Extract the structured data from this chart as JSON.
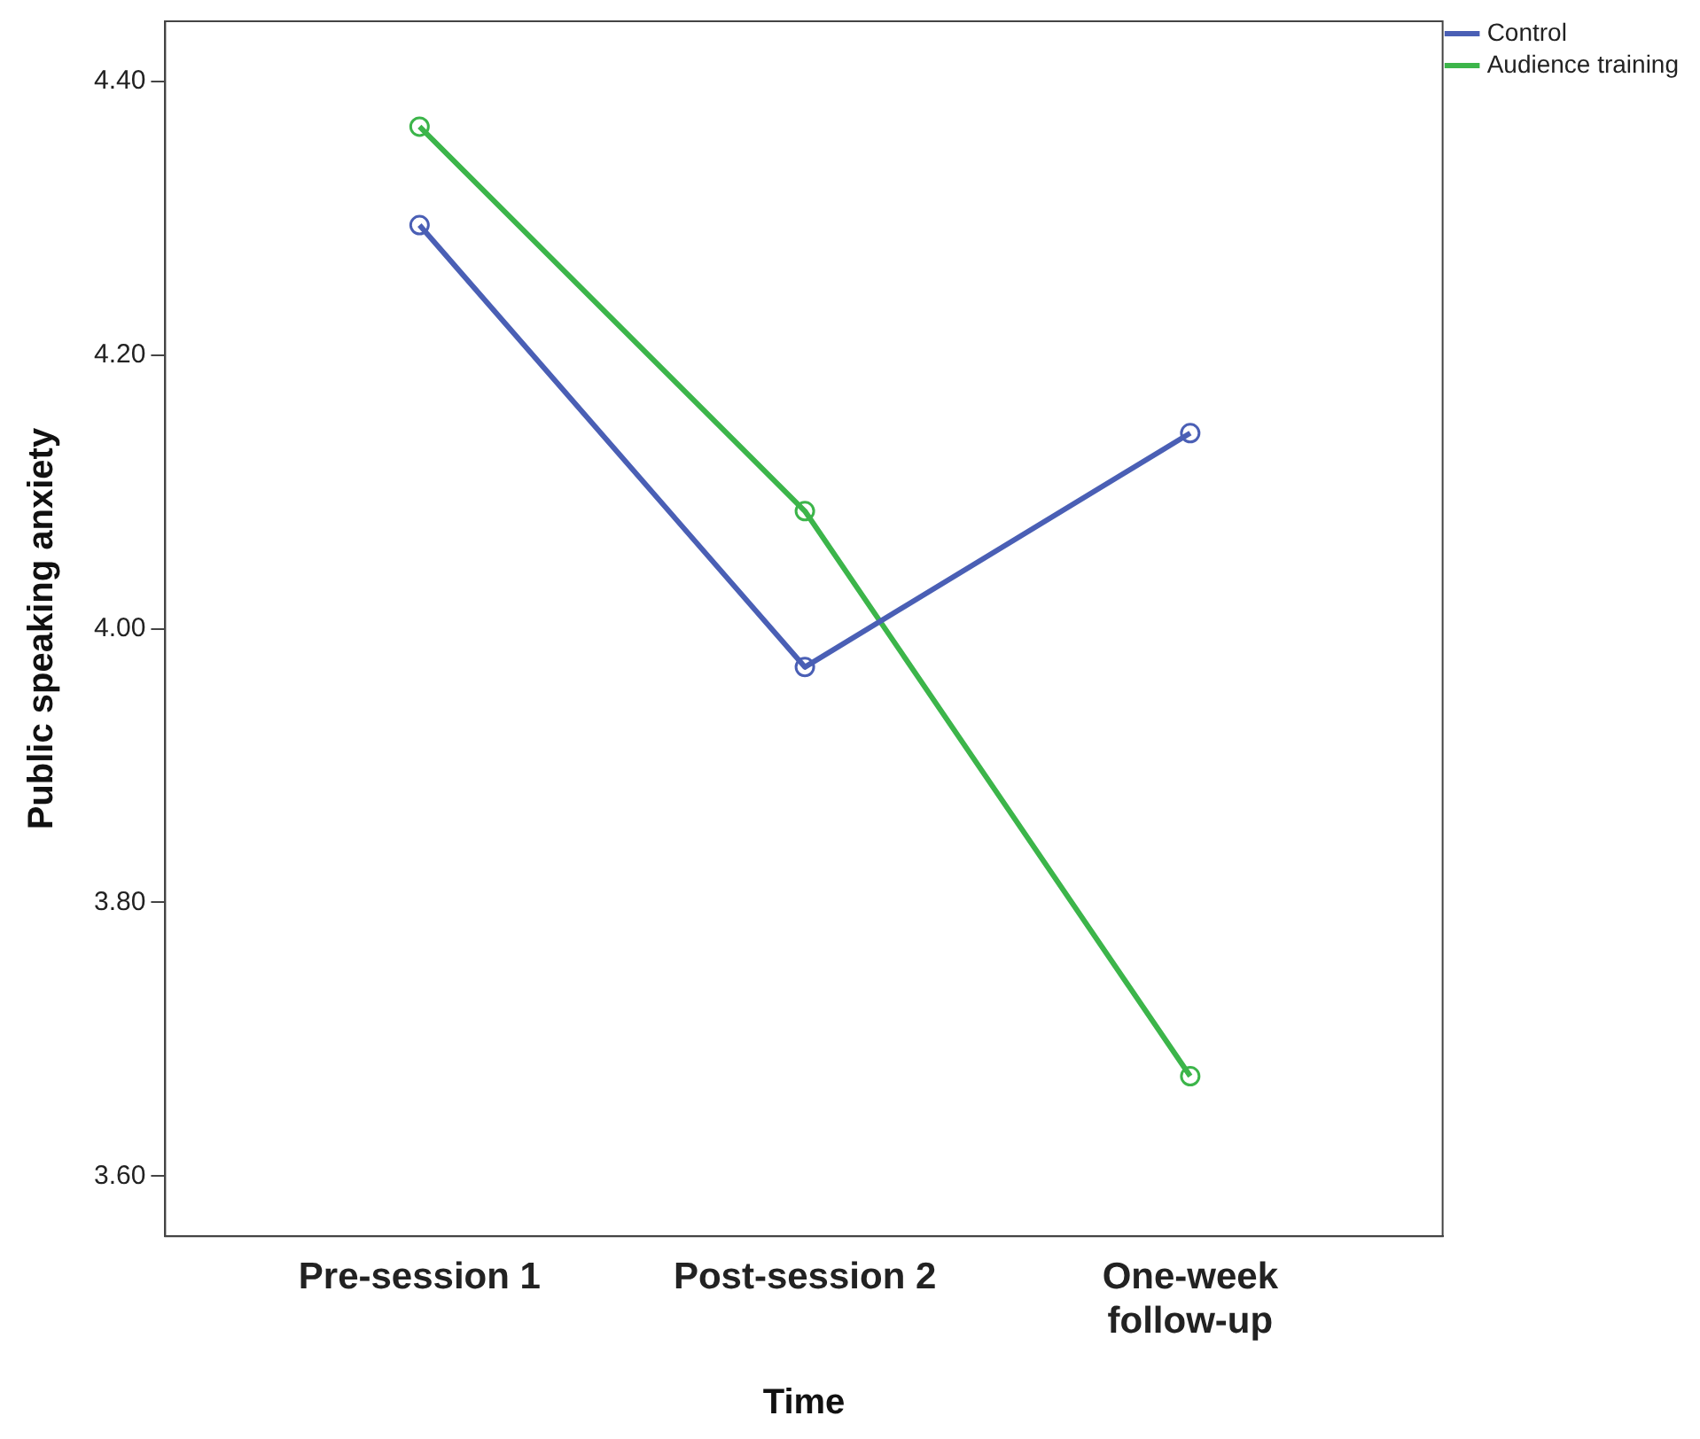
{
  "chart_data": {
    "type": "line",
    "xlabel": "Time",
    "ylabel": "Public speaking anxiety",
    "categories": [
      "Pre-session 1",
      "Post-session 2",
      "One-week follow-up"
    ],
    "series": [
      {
        "name": "Control",
        "color": "#4a5fb5",
        "values": [
          4.295,
          3.972,
          4.143
        ]
      },
      {
        "name": "Audience training",
        "color": "#3cb54a",
        "values": [
          4.367,
          4.086,
          3.673
        ]
      }
    ],
    "ylim": [
      3.556,
      4.444
    ],
    "yticks": [
      {
        "value": 3.6,
        "label": "3.60"
      },
      {
        "value": 3.8,
        "label": "3.80"
      },
      {
        "value": 4.0,
        "label": "4.00"
      },
      {
        "value": 4.2,
        "label": "4.20"
      },
      {
        "value": 4.4,
        "label": "4.40"
      }
    ],
    "grid": false,
    "legend": "right",
    "marker": "circle",
    "line_style": "solid"
  }
}
